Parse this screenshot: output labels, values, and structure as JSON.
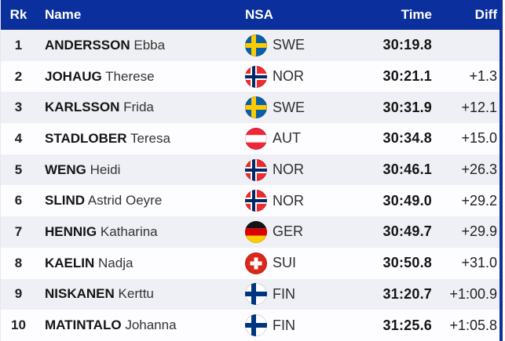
{
  "table": {
    "columns": {
      "rk": "Rk",
      "name": "Name",
      "nsa": "NSA",
      "time": "Time",
      "diff": "Diff"
    },
    "rows": [
      {
        "rank": "1",
        "last_name": "ANDERSSON",
        "first_name": "Ebba",
        "nsa": "SWE",
        "time": "30:19.8",
        "diff": ""
      },
      {
        "rank": "2",
        "last_name": "JOHAUG",
        "first_name": "Therese",
        "nsa": "NOR",
        "time": "30:21.1",
        "diff": "+1.3"
      },
      {
        "rank": "3",
        "last_name": "KARLSSON",
        "first_name": "Frida",
        "nsa": "SWE",
        "time": "30:31.9",
        "diff": "+12.1"
      },
      {
        "rank": "4",
        "last_name": "STADLOBER",
        "first_name": "Teresa",
        "nsa": "AUT",
        "time": "30:34.8",
        "diff": "+15.0"
      },
      {
        "rank": "5",
        "last_name": "WENG",
        "first_name": "Heidi",
        "nsa": "NOR",
        "time": "30:46.1",
        "diff": "+26.3"
      },
      {
        "rank": "6",
        "last_name": "SLIND",
        "first_name": "Astrid Oeyre",
        "nsa": "NOR",
        "time": "30:49.0",
        "diff": "+29.2"
      },
      {
        "rank": "7",
        "last_name": "HENNIG",
        "first_name": "Katharina",
        "nsa": "GER",
        "time": "30:49.7",
        "diff": "+29.9"
      },
      {
        "rank": "8",
        "last_name": "KAELIN",
        "first_name": "Nadja",
        "nsa": "SUI",
        "time": "30:50.8",
        "diff": "+31.0"
      },
      {
        "rank": "9",
        "last_name": "NISKANEN",
        "first_name": "Kerttu",
        "nsa": "FIN",
        "time": "31:20.7",
        "diff": "+1:00.9"
      },
      {
        "rank": "10",
        "last_name": "MATINTALO",
        "first_name": "Johanna",
        "nsa": "FIN",
        "time": "31:25.6",
        "diff": "+1:05.8"
      }
    ]
  },
  "colors": {
    "header_bg": "#0b2f9c",
    "header_text": "#ffffff",
    "border": "#0b2f9c",
    "odd_row_bg": "#eff0f5",
    "even_row_bg": "#fdfdff"
  },
  "flags": {
    "SWE": {
      "type": "nordic-cross",
      "bg": "#0a5fa8",
      "cross": "#fecb00"
    },
    "NOR": {
      "type": "nordic-cross-outlined",
      "bg": "#ef2b2d",
      "cross": "#002868",
      "outline": "#ffffff"
    },
    "AUT": {
      "type": "h-stripes",
      "stripes": [
        "#ed2939",
        "#ffffff",
        "#ed2939"
      ]
    },
    "GER": {
      "type": "h-stripes",
      "stripes": [
        "#141414",
        "#dd0000",
        "#ffce00"
      ]
    },
    "SUI": {
      "type": "plus",
      "bg": "#da291c",
      "cross": "#ffffff"
    },
    "FIN": {
      "type": "nordic-cross",
      "bg": "#ffffff",
      "cross": "#003580"
    }
  }
}
